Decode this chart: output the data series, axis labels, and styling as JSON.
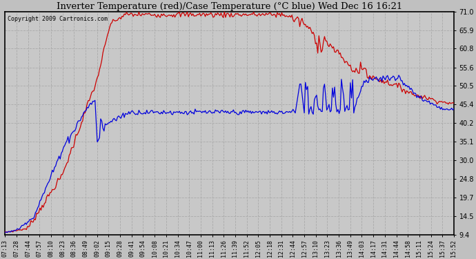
{
  "title": "Inverter Temperature (red)/Case Temperature (°C blue) Wed Dec 16 16:21",
  "copyright": "Copyright 2009 Cartronics.com",
  "yticks": [
    9.4,
    14.5,
    19.7,
    24.8,
    30.0,
    35.1,
    40.2,
    45.4,
    50.5,
    55.6,
    60.8,
    65.9,
    71.0
  ],
  "ylim": [
    9.4,
    71.0
  ],
  "bg_color": "#c8c8c8",
  "plot_bg": "#c8c8c8",
  "grid_color": "#aaaaaa",
  "red_color": "#cc0000",
  "blue_color": "#0000dd",
  "x_labels": [
    "07:13",
    "07:28",
    "07:44",
    "07:57",
    "08:10",
    "08:23",
    "08:36",
    "08:49",
    "09:02",
    "09:15",
    "09:28",
    "09:41",
    "09:54",
    "10:08",
    "10:21",
    "10:34",
    "10:47",
    "11:00",
    "11:13",
    "11:26",
    "11:39",
    "11:52",
    "12:05",
    "12:18",
    "12:31",
    "12:44",
    "12:57",
    "13:10",
    "13:23",
    "13:36",
    "13:49",
    "14:03",
    "14:17",
    "14:31",
    "14:44",
    "14:58",
    "15:11",
    "15:24",
    "15:37",
    "15:52"
  ],
  "figsize": [
    6.9,
    3.75
  ],
  "dpi": 100
}
